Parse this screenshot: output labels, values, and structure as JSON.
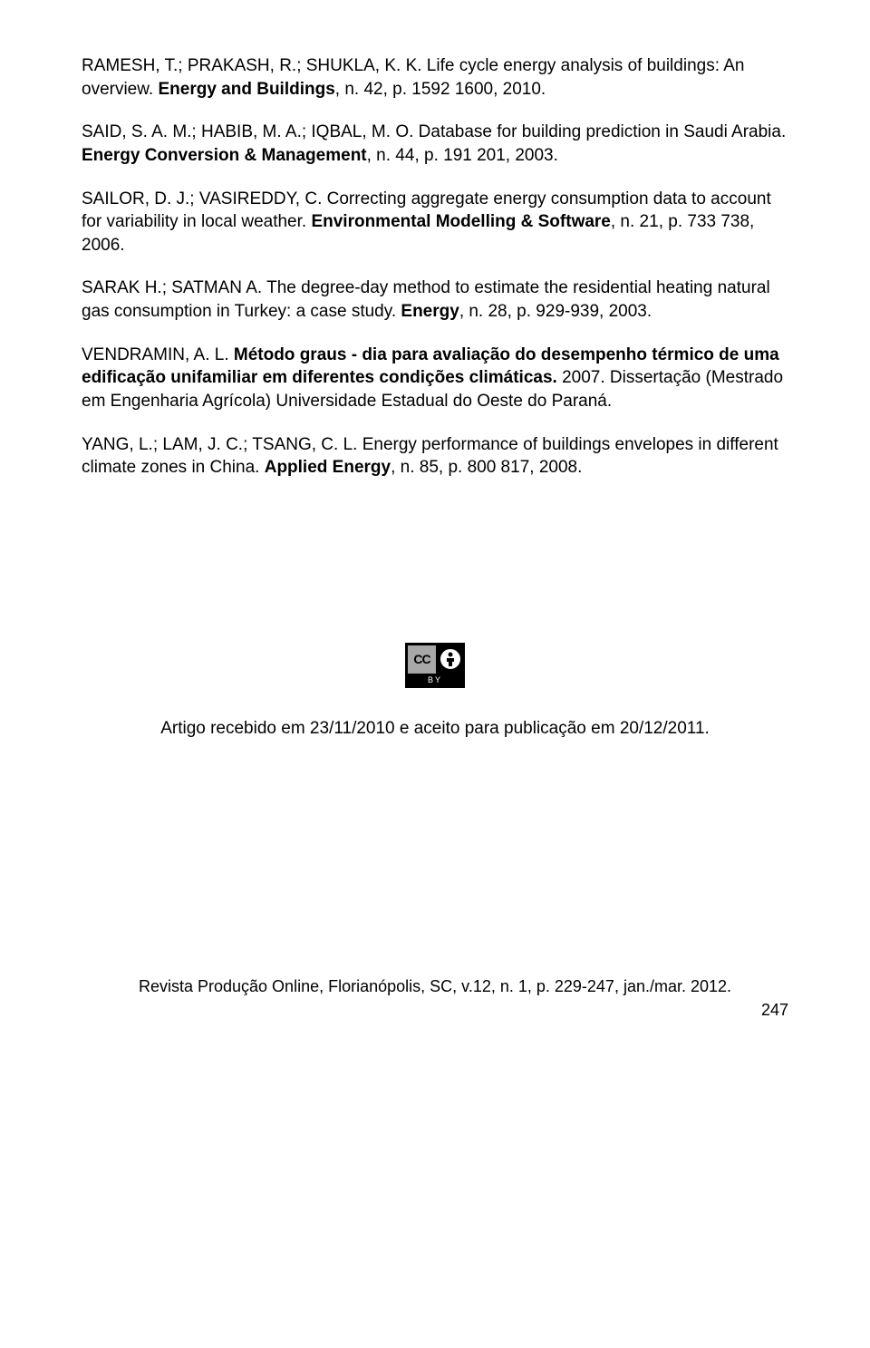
{
  "references": [
    {
      "parts": [
        {
          "text": "RAMESH, T.; PRAKASH, R.; SHUKLA, K. K. Life cycle energy analysis of buildings: An overview. ",
          "bold": false
        },
        {
          "text": "Energy and Buildings",
          "bold": true
        },
        {
          "text": ", n. 42, p. 1592 1600, 2010.",
          "bold": false
        }
      ]
    },
    {
      "parts": [
        {
          "text": "SAID, S. A. M.; HABIB, M. A.; IQBAL, M. O. Database for building prediction in Saudi Arabia. ",
          "bold": false
        },
        {
          "text": "Energy Conversion & Management",
          "bold": true
        },
        {
          "text": ", n. 44, p. 191 201, 2003.",
          "bold": false
        }
      ]
    },
    {
      "parts": [
        {
          "text": "SAILOR, D. J.; VASIREDDY, C. Correcting aggregate energy consumption data to account for variability in local weather. ",
          "bold": false
        },
        {
          "text": "Environmental Modelling & Software",
          "bold": true
        },
        {
          "text": ", n. 21, p. 733 738, 2006.",
          "bold": false
        }
      ]
    },
    {
      "parts": [
        {
          "text": "SARAK H.; SATMAN A. The degree-day method to estimate the residential heating natural gas consumption in Turkey: a case study. ",
          "bold": false
        },
        {
          "text": "Energy",
          "bold": true
        },
        {
          "text": ", n. 28, p. 929-939, 2003.",
          "bold": false
        }
      ]
    },
    {
      "parts": [
        {
          "text": "VENDRAMIN, A. L. ",
          "bold": false
        },
        {
          "text": "Método graus - dia para avaliação do desempenho térmico de uma edificação unifamiliar em diferentes condições climáticas.",
          "bold": true
        },
        {
          "text": " 2007. Dissertação (Mestrado em Engenharia Agrícola) Universidade Estadual do Oeste do Paraná.",
          "bold": false
        }
      ]
    },
    {
      "parts": [
        {
          "text": "YANG, L.; LAM, J. C.; TSANG, C. L. Energy performance of buildings envelopes in different climate zones in China. ",
          "bold": false
        },
        {
          "text": "Applied Energy",
          "bold": true
        },
        {
          "text": ", n. 85, p. 800 817, 2008.",
          "bold": false
        }
      ]
    }
  ],
  "license": {
    "cc_label": "CC",
    "by_label": "BY"
  },
  "accepted_text": "Artigo recebido em 23/11/2010 e aceito para publicação em 20/12/2011.",
  "footer_text": "Revista Produção Online, Florianópolis, SC, v.12, n. 1, p. 229-247, jan./mar.  2012.",
  "page_number": "247"
}
